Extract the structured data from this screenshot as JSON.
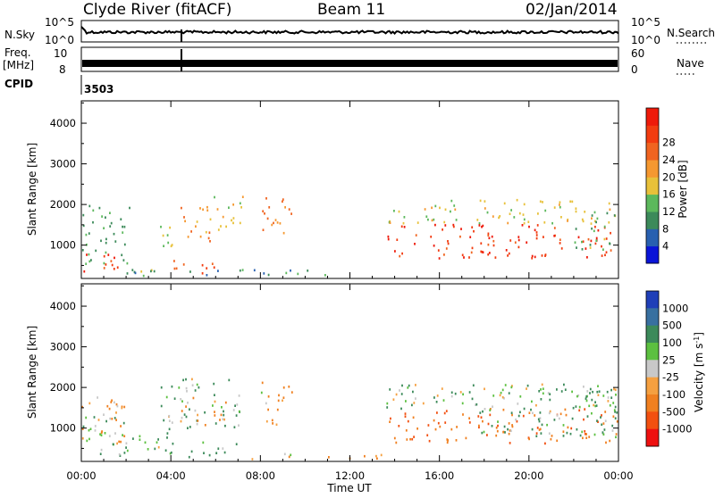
{
  "header": {
    "station": "Clyde River (fitACF)",
    "beam": "Beam 11",
    "date": "02/Jan/2014"
  },
  "top_panels": {
    "nsky": {
      "label": "N.Sky",
      "tick_top": "10^5",
      "tick_bottom": "10^0"
    },
    "nsearch": {
      "label": "N.Search",
      "tick_top": "10^5",
      "tick_bottom": "10^0"
    },
    "freq": {
      "label_line1": "Freq.",
      "label_line2": "[MHz]",
      "tick_top": "10",
      "tick_bottom": "8"
    },
    "nave": {
      "label": "Nave",
      "tick_top": "60",
      "tick_bottom": "0"
    },
    "cpid": {
      "label": "CPID",
      "value": "3503"
    }
  },
  "chart_data": [
    {
      "type": "heatmap",
      "title": "",
      "quantity": "Power",
      "xlabel": "",
      "ylabel": "Slant Range [km]",
      "xlim": [
        0,
        24
      ],
      "ylim": [
        180,
        4550
      ],
      "xticks": [
        "00:00",
        "04:00",
        "08:00",
        "12:00",
        "16:00",
        "20:00",
        "00:00"
      ],
      "yticks": [
        1000,
        2000,
        3000,
        4000
      ],
      "colorbar": {
        "label": "Power [dB]",
        "ticks": [
          "4",
          "8",
          "12",
          "16",
          "20",
          "24",
          "28"
        ],
        "colors": [
          "#0a14d8",
          "#2860b0",
          "#3c8a5a",
          "#5cb85c",
          "#e8c13a",
          "#f59830",
          "#f06420",
          "#f23c10",
          "#ee1a0a"
        ]
      },
      "regions": [
        {
          "t0": 0.0,
          "t1": 2.0,
          "r0": 300,
          "r1": 800,
          "value": 26
        },
        {
          "t0": 0.0,
          "t1": 2.2,
          "r0": 500,
          "r1": 2000,
          "value": 8
        },
        {
          "t0": 1.9,
          "t1": 3.5,
          "r0": 350,
          "r1": 550,
          "value": 10
        },
        {
          "t0": 3.6,
          "t1": 6.0,
          "r0": 300,
          "r1": 650,
          "value": 24
        },
        {
          "t0": 3.5,
          "t1": 4.4,
          "r0": 1000,
          "r1": 1800,
          "value": 12
        },
        {
          "t0": 4.4,
          "t1": 5.9,
          "r0": 1050,
          "r1": 2050,
          "value": 18
        },
        {
          "t0": 5.9,
          "t1": 7.2,
          "r0": 1200,
          "r1": 2250,
          "value": 14
        },
        {
          "t0": 8.0,
          "t1": 9.4,
          "r0": 1100,
          "r1": 2200,
          "value": 20
        },
        {
          "t0": 2.0,
          "t1": 11.6,
          "r0": 250,
          "r1": 420,
          "value": 6
        },
        {
          "t0": 13.6,
          "t1": 24.0,
          "r0": 1550,
          "r1": 2150,
          "value": 14
        },
        {
          "t0": 13.6,
          "t1": 24.0,
          "r0": 700,
          "r1": 1550,
          "value": 27
        },
        {
          "t0": 22.0,
          "t1": 24.0,
          "r0": 900,
          "r1": 2000,
          "value": 10
        }
      ]
    },
    {
      "type": "heatmap",
      "title": "",
      "quantity": "Velocity",
      "xlabel": "Time UT",
      "ylabel": "Slant Range [km]",
      "xlim": [
        0,
        24
      ],
      "ylim": [
        180,
        4550
      ],
      "xticks": [
        "00:00",
        "04:00",
        "08:00",
        "12:00",
        "16:00",
        "20:00",
        "00:00"
      ],
      "yticks": [
        1000,
        2000,
        3000,
        4000
      ],
      "colorbar": {
        "label": "Velocity [m s^-1]",
        "ticks": [
          "1000",
          "500",
          "100",
          "25",
          "-25",
          "-100",
          "-500",
          "-1000"
        ],
        "colors": [
          "#1f3fb8",
          "#3870a0",
          "#3c8a5a",
          "#5cc040",
          "#c8c8c8",
          "#f5a040",
          "#f08020",
          "#f25010",
          "#ee1010"
        ]
      },
      "regions": [
        {
          "t0": 0.0,
          "t1": 2.0,
          "r0": 300,
          "r1": 1300,
          "value": 100
        },
        {
          "t0": 0.0,
          "t1": 2.0,
          "r0": 600,
          "r1": 1900,
          "value": -100
        },
        {
          "t0": 0.3,
          "t1": 1.5,
          "r0": 800,
          "r1": 1100,
          "value": 0
        },
        {
          "t0": 2.0,
          "t1": 4.0,
          "r0": 380,
          "r1": 900,
          "value": 100
        },
        {
          "t0": 3.5,
          "t1": 7.2,
          "r0": 1000,
          "r1": 2250,
          "value": 100
        },
        {
          "t0": 4.4,
          "t1": 6.5,
          "r0": 1100,
          "r1": 1800,
          "value": -100
        },
        {
          "t0": 3.6,
          "t1": 7.0,
          "r0": 300,
          "r1": 700,
          "value": 100
        },
        {
          "t0": 8.0,
          "t1": 9.4,
          "r0": 1100,
          "r1": 2200,
          "value": -100
        },
        {
          "t0": 7.5,
          "t1": 13.5,
          "r0": 250,
          "r1": 400,
          "value": -100
        },
        {
          "t0": 13.6,
          "t1": 24.0,
          "r0": 650,
          "r1": 1500,
          "value": -500
        },
        {
          "t0": 13.6,
          "t1": 24.0,
          "r0": 1500,
          "r1": 2100,
          "value": 50
        },
        {
          "t0": 17.0,
          "t1": 24.0,
          "r0": 800,
          "r1": 2000,
          "value": 100
        }
      ]
    }
  ]
}
